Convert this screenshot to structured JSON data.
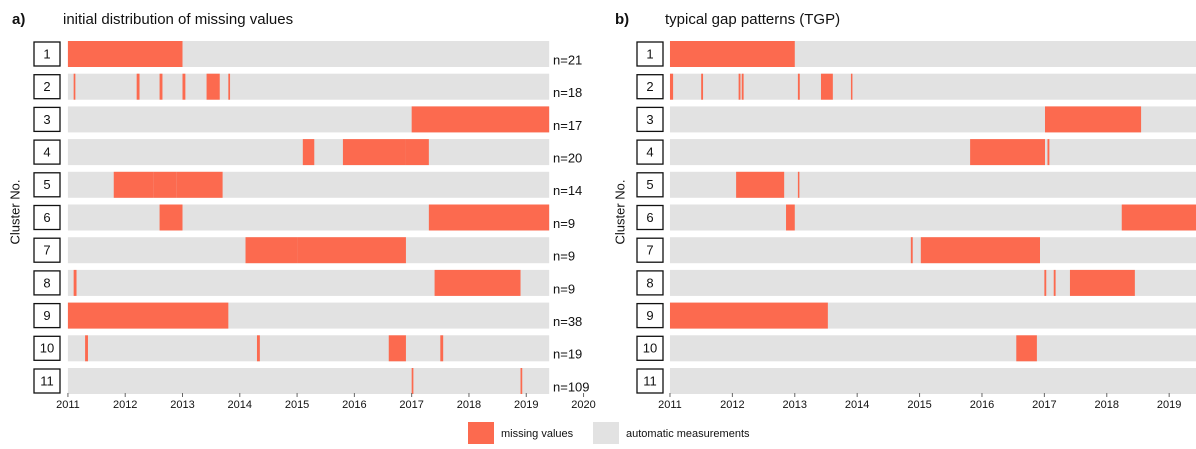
{
  "chart_data": [
    {
      "type": "timeline",
      "panel_label": "a)",
      "title": "initial distribution of missing values",
      "y_label": "Cluster No.",
      "categories": [
        "1",
        "2",
        "3",
        "4",
        "5",
        "6",
        "7",
        "8",
        "9",
        "10",
        "11"
      ],
      "annotations": [
        "n=21",
        "n=18",
        "n=17",
        "n=20",
        "n=14",
        "n=9",
        "n=9",
        "n=9",
        "n=38",
        "n=19",
        "n=109"
      ],
      "period": [
        2011,
        2019.4
      ],
      "segments": [
        [
          [
            2011,
            2013.0
          ]
        ],
        [
          [
            2011.1,
            2011.13
          ],
          [
            2012.2,
            2012.25
          ],
          [
            2012.6,
            2012.65
          ],
          [
            2013.0,
            2013.05
          ],
          [
            2013.42,
            2013.65
          ],
          [
            2013.8,
            2013.83
          ]
        ],
        [
          [
            2017.0,
            2019.4
          ]
        ],
        [
          [
            2015.1,
            2015.3
          ],
          [
            2015.8,
            2016.9
          ],
          [
            2016.9,
            2017.3
          ]
        ],
        [
          [
            2011.8,
            2012.5
          ],
          [
            2012.5,
            2012.9
          ],
          [
            2012.9,
            2013.7
          ]
        ],
        [
          [
            2012.6,
            2013.0
          ],
          [
            2017.3,
            2019.4
          ]
        ],
        [
          [
            2014.1,
            2015.0
          ],
          [
            2015.0,
            2016.9
          ]
        ],
        [
          [
            2011.1,
            2011.15
          ],
          [
            2017.4,
            2018.9
          ]
        ],
        [
          [
            2011,
            2013.8
          ]
        ],
        [
          [
            2011.3,
            2011.35
          ],
          [
            2014.3,
            2014.35
          ],
          [
            2016.6,
            2016.9
          ],
          [
            2017.5,
            2017.55
          ]
        ],
        [
          [
            2017.0,
            2017.03
          ],
          [
            2018.9,
            2018.93
          ]
        ]
      ],
      "xlim": [
        2010.6,
        2020.2
      ],
      "xticks": [
        2011,
        2012,
        2013,
        2014,
        2015,
        2016,
        2017,
        2018,
        2019,
        2020
      ]
    },
    {
      "type": "timeline",
      "panel_label": "b)",
      "title": "typical gap patterns (TGP)",
      "y_label": "Cluster No.",
      "categories": [
        "1",
        "2",
        "3",
        "4",
        "5",
        "6",
        "7",
        "8",
        "9",
        "10",
        "11"
      ],
      "period": [
        2011,
        2019.43
      ],
      "segments": [
        [
          [
            2011,
            2013.0
          ]
        ],
        [
          [
            2011,
            2011.05
          ],
          [
            2011.5,
            2011.53
          ],
          [
            2012.1,
            2012.13
          ],
          [
            2012.15,
            2012.18
          ],
          [
            2013.05,
            2013.08
          ],
          [
            2013.42,
            2013.61
          ],
          [
            2013.9,
            2013.92
          ]
        ],
        [
          [
            2017.01,
            2018.55
          ]
        ],
        [
          [
            2015.81,
            2017.01
          ],
          [
            2017.05,
            2017.08
          ]
        ],
        [
          [
            2012.06,
            2012.83
          ],
          [
            2013.05,
            2013.07
          ]
        ],
        [
          [
            2012.86,
            2013.0
          ],
          [
            2018.24,
            2019.43
          ]
        ],
        [
          [
            2014.86,
            2014.89
          ],
          [
            2015.02,
            2016.93
          ]
        ],
        [
          [
            2017.0,
            2017.03
          ],
          [
            2017.15,
            2017.18
          ],
          [
            2017.41,
            2018.45
          ]
        ],
        [
          [
            2011,
            2013.53
          ]
        ],
        [
          [
            2016.55,
            2016.88
          ]
        ],
        []
      ],
      "xlim": [
        2010.76,
        2019.43
      ],
      "xticks": [
        2011,
        2012,
        2013,
        2014,
        2015,
        2016,
        2017,
        2018,
        2019
      ]
    }
  ],
  "legend": {
    "items": [
      {
        "label": "missing values",
        "color": "#fc6a4f"
      },
      {
        "label": "automatic measurements",
        "color": "#e2e2e2"
      }
    ]
  }
}
